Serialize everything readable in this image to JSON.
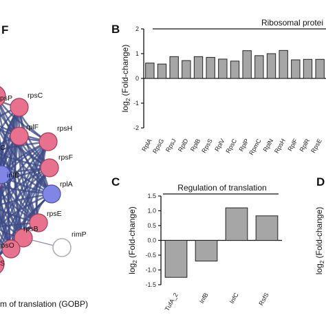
{
  "panel_letters": {
    "top_left": "F",
    "b": "B",
    "c": "C",
    "d": "D"
  },
  "network": {
    "caption": "m of translation (GOBP)",
    "fragment_labels": {
      "rpsP": "psP",
      "rpsC_left": "C",
      "bottom_left": "S"
    },
    "nodes": [
      {
        "id": "rpsC",
        "label": "rpsC",
        "color": "#e8718d"
      },
      {
        "id": "rplF",
        "label": "rplF",
        "color": "#e8718d"
      },
      {
        "id": "rpsH",
        "label": "rpsH",
        "color": "#e8718d"
      },
      {
        "id": "rpsF",
        "label": "rpsF",
        "color": "#e8718d"
      },
      {
        "id": "rplA",
        "label": "rplA",
        "color": "#7f86e6"
      },
      {
        "id": "infB",
        "label": "infB",
        "color": "#7f86e6"
      },
      {
        "id": "rpsE",
        "label": "rpsE",
        "color": "#e8718d"
      },
      {
        "id": "rpsB",
        "label": "rpsB",
        "color": "#e8718d"
      },
      {
        "id": "rpsO",
        "label": "rpsO",
        "color": "#e8718d"
      },
      {
        "id": "rimP",
        "label": "rimP",
        "color": "#ffffff"
      }
    ],
    "edge_color": "#3b4a86"
  },
  "chart_data": [
    {
      "panel": "B",
      "type": "bar",
      "group_title": "Ribosomal protei",
      "ylabel": "log2 (Fold-change)",
      "ylim": [
        -2,
        2
      ],
      "yticks": [
        -2,
        -1,
        0,
        1,
        2
      ],
      "categories": [
        "RplA",
        "RpsG",
        "RpsJ",
        "RplD",
        "RplB",
        "RpsS",
        "RplV",
        "RpsC",
        "RplP",
        "RpmC",
        "RplN",
        "RpsH",
        "RplF",
        "RplR",
        "RpsE"
      ],
      "values": [
        0.62,
        0.58,
        0.88,
        0.72,
        0.88,
        0.85,
        0.78,
        0.7,
        1.12,
        0.92,
        1.0,
        1.13,
        0.75,
        0.77,
        0.77
      ],
      "bar_color": "#a6a6a6"
    },
    {
      "panel": "C",
      "type": "bar",
      "group_title": "Regulation of translation",
      "ylabel": "log2 (Fold-change)",
      "ylim": [
        -1.5,
        1.5
      ],
      "yticks": [
        -1.5,
        -1.0,
        -0.5,
        0.0,
        0.5,
        1.0,
        1.5
      ],
      "ytick_labels": [
        "-1.5",
        "-1.0",
        "-0.5",
        "0.0",
        "0.5",
        "1.0",
        "1.5"
      ],
      "categories": [
        "TufA_2",
        "InfB",
        "InfC",
        "RsfS"
      ],
      "values": [
        -1.25,
        -0.7,
        1.1,
        0.83
      ],
      "bar_color": "#a6a6a6"
    },
    {
      "panel": "D",
      "type": "bar",
      "ylabel": "log2 (Fold-change)"
    }
  ]
}
